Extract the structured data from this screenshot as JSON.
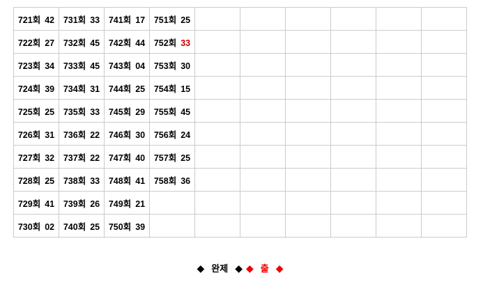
{
  "table": {
    "columns": 10,
    "rows": [
      [
        {
          "round": "721회",
          "value": "42"
        },
        {
          "round": "731회",
          "value": "33"
        },
        {
          "round": "741회",
          "value": "17"
        },
        {
          "round": "751회",
          "value": "25"
        },
        null,
        null,
        null,
        null,
        null,
        null
      ],
      [
        {
          "round": "722회",
          "value": "27"
        },
        {
          "round": "732회",
          "value": "45"
        },
        {
          "round": "742회",
          "value": "44"
        },
        {
          "round": "752회",
          "value": "33",
          "highlight": true
        },
        null,
        null,
        null,
        null,
        null,
        null
      ],
      [
        {
          "round": "723회",
          "value": "34"
        },
        {
          "round": "733회",
          "value": "45"
        },
        {
          "round": "743회",
          "value": "04"
        },
        {
          "round": "753회",
          "value": "30"
        },
        null,
        null,
        null,
        null,
        null,
        null
      ],
      [
        {
          "round": "724회",
          "value": "39"
        },
        {
          "round": "734회",
          "value": "31"
        },
        {
          "round": "744회",
          "value": "25"
        },
        {
          "round": "754회",
          "value": "15"
        },
        null,
        null,
        null,
        null,
        null,
        null
      ],
      [
        {
          "round": "725회",
          "value": "25"
        },
        {
          "round": "735회",
          "value": "33"
        },
        {
          "round": "745회",
          "value": "29"
        },
        {
          "round": "755회",
          "value": "45"
        },
        null,
        null,
        null,
        null,
        null,
        null
      ],
      [
        {
          "round": "726회",
          "value": "31"
        },
        {
          "round": "736회",
          "value": "22"
        },
        {
          "round": "746회",
          "value": "30"
        },
        {
          "round": "756회",
          "value": "24"
        },
        null,
        null,
        null,
        null,
        null,
        null
      ],
      [
        {
          "round": "727회",
          "value": "32"
        },
        {
          "round": "737회",
          "value": "22"
        },
        {
          "round": "747회",
          "value": "40"
        },
        {
          "round": "757회",
          "value": "25"
        },
        null,
        null,
        null,
        null,
        null,
        null
      ],
      [
        {
          "round": "728회",
          "value": "25"
        },
        {
          "round": "738회",
          "value": "33"
        },
        {
          "round": "748회",
          "value": "41"
        },
        {
          "round": "758회",
          "value": "36"
        },
        null,
        null,
        null,
        null,
        null,
        null
      ],
      [
        {
          "round": "729회",
          "value": "41"
        },
        {
          "round": "739회",
          "value": "26"
        },
        {
          "round": "749회",
          "value": "21"
        },
        null,
        null,
        null,
        null,
        null,
        null,
        null
      ],
      [
        {
          "round": "730회",
          "value": "02"
        },
        {
          "round": "740회",
          "value": "25"
        },
        {
          "round": "750회",
          "value": "39"
        },
        null,
        null,
        null,
        null,
        null,
        null,
        null
      ]
    ]
  },
  "legend": {
    "diamond": "◆",
    "items": [
      {
        "label": "완제",
        "color": "#000000"
      },
      {
        "label": "출",
        "color": "#ee0000"
      }
    ]
  },
  "colors": {
    "grid": "#cbcbcb",
    "text": "#000000",
    "highlight": "#cc0000",
    "background": "#ffffff"
  }
}
